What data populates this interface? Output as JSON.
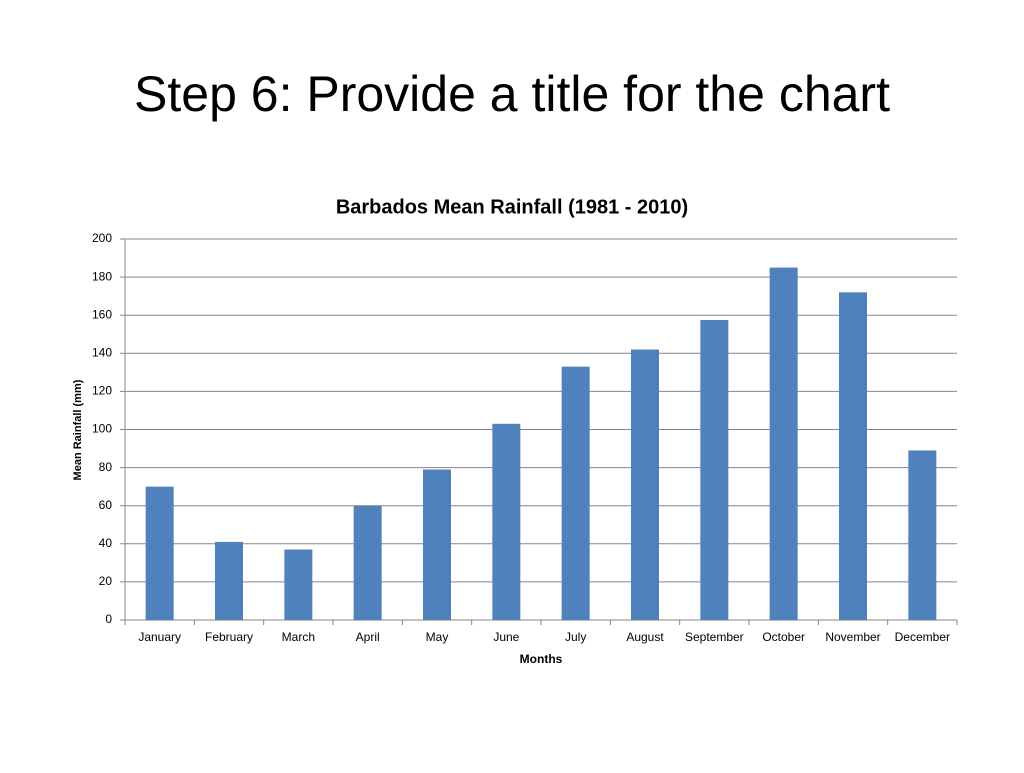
{
  "slide_title": "Step 6: Provide a title for the chart",
  "chart_data": {
    "type": "bar",
    "title": "Barbados Mean Rainfall  (1981 - 2010)",
    "x_label": "Months",
    "y_label": "Mean Rainfall (mm)",
    "categories": [
      "January",
      "February",
      "March",
      "April",
      "May",
      "June",
      "July",
      "August",
      "September",
      "October",
      "November",
      "December"
    ],
    "values": [
      70,
      41,
      37,
      60,
      79,
      103,
      133,
      142,
      157.5,
      185,
      172,
      89
    ],
    "color": "#4f81bd",
    "ylim": [
      0,
      200
    ],
    "yticks": [
      0,
      20,
      40,
      60,
      80,
      100,
      120,
      140,
      160,
      180,
      200
    ],
    "grid": true
  }
}
